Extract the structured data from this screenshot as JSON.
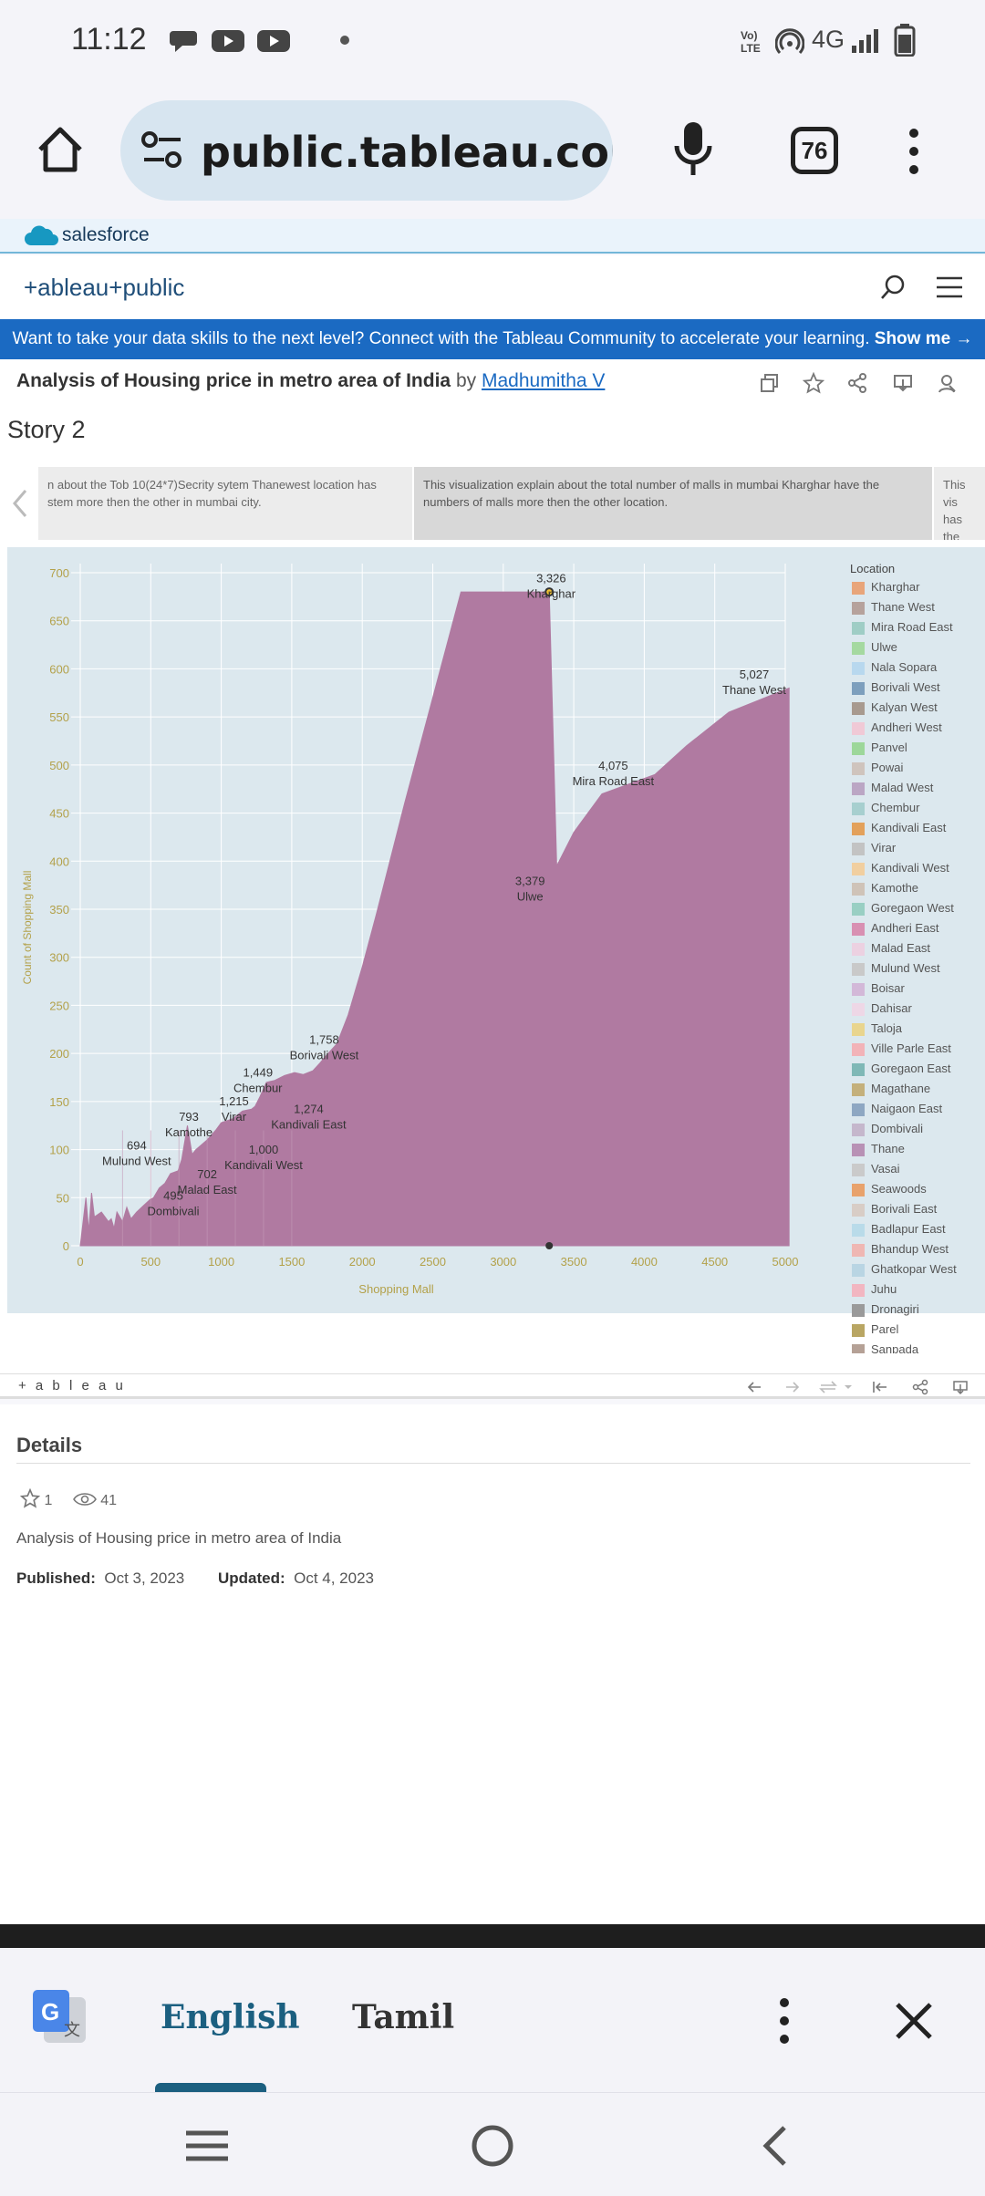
{
  "status_bar": {
    "time": "11:12",
    "network": "4G"
  },
  "browser": {
    "url": "public.tableau.com/app/pı",
    "tab_count": "76"
  },
  "salesforce_label": "salesforce",
  "tableau_logo": "+ableau+public",
  "banner": {
    "text": "Want to take your data skills to the next level? Connect with the Tableau Community to accelerate your learning.",
    "link": "Show me →"
  },
  "viz_header": {
    "title": "Analysis of Housing price in metro area of India",
    "by": "by",
    "author": "Madhumitha V"
  },
  "story": {
    "title": "Story 2",
    "nav_points": [
      "n about the Tob 10(24*7)Secrity sytem Thanewest location has stem more then the other in mumbai city.",
      "This visualization explain about the total number of malls in mumbai Kharghar have the numbers of  malls more then the other location.",
      "This vis has the"
    ]
  },
  "chart_data": {
    "type": "area",
    "xlabel": "Shopping Mall",
    "ylabel": "Count of Shopping Mall",
    "xlim": [
      0,
      5000
    ],
    "ylim": [
      0,
      700
    ],
    "x_ticks": [
      "0",
      "500",
      "1000",
      "1500",
      "2000",
      "2500",
      "3000",
      "3500",
      "4000",
      "4500",
      "5000"
    ],
    "y_ticks": [
      "0",
      "50",
      "100",
      "150",
      "200",
      "250",
      "300",
      "350",
      "400",
      "450",
      "500",
      "550",
      "600",
      "650",
      "700"
    ],
    "color": "#b07aa1",
    "grid": true,
    "x": [
      0,
      40,
      60,
      80,
      100,
      150,
      200,
      220,
      240,
      260,
      300,
      330,
      360,
      400,
      450,
      495,
      520,
      560,
      600,
      640,
      694,
      720,
      760,
      793,
      820,
      860,
      900,
      960,
      1000,
      1080,
      1150,
      1215,
      1240,
      1274,
      1320,
      1380,
      1449,
      1520,
      1580,
      1650,
      1700,
      1758,
      1820,
      1900,
      2000,
      2100,
      2300,
      2500,
      2700,
      2900,
      3100,
      3326,
      3379,
      3500,
      3700,
      4075,
      4300,
      4600,
      5027
    ],
    "y": [
      0,
      50,
      15,
      55,
      30,
      35,
      25,
      28,
      18,
      35,
      25,
      40,
      28,
      35,
      42,
      48,
      50,
      60,
      65,
      75,
      78,
      90,
      125,
      95,
      100,
      105,
      110,
      120,
      128,
      132,
      140,
      142,
      145,
      155,
      170,
      172,
      177,
      180,
      178,
      182,
      190,
      200,
      210,
      240,
      290,
      345,
      460,
      570,
      680,
      680,
      730,
      680,
      395,
      430,
      470,
      490,
      520,
      555,
      580
    ],
    "data_labels": [
      {
        "value": "3,326",
        "name": "Kharghar"
      },
      {
        "value": "5,027",
        "name": "Thane West"
      },
      {
        "value": "4,075",
        "name": "Mira Road East"
      },
      {
        "value": "3,379",
        "name": "Ulwe"
      },
      {
        "value": "1,758",
        "name": "Borivali West"
      },
      {
        "value": "1,449",
        "name": "Chembur"
      },
      {
        "value": "1,215",
        "name": "Virar"
      },
      {
        "value": "1,274",
        "name": "Kandivali East"
      },
      {
        "value": "793",
        "name": "Kamothe"
      },
      {
        "value": "1,000",
        "name": "Kandivali West"
      },
      {
        "value": "694",
        "name": "Mulund West"
      },
      {
        "value": "702",
        "name": "Malad East"
      },
      {
        "value": "495",
        "name": "Dombivali"
      }
    ],
    "legend": {
      "title": "Location",
      "placement": "right",
      "items": [
        {
          "name": "Kharghar",
          "color": "#e8a57a"
        },
        {
          "name": "Thane West",
          "color": "#b6a29c"
        },
        {
          "name": "Mira Road East",
          "color": "#9fcdc5"
        },
        {
          "name": "Ulwe",
          "color": "#a5d9a0"
        },
        {
          "name": "Nala Sopara",
          "color": "#b8d8ee"
        },
        {
          "name": "Borivali West",
          "color": "#7d9fbd"
        },
        {
          "name": "Kalyan West",
          "color": "#a89a8f"
        },
        {
          "name": "Andheri West",
          "color": "#f0c9d6"
        },
        {
          "name": "Panvel",
          "color": "#9dd79a"
        },
        {
          "name": "Powai",
          "color": "#cfc4bd"
        },
        {
          "name": "Malad West",
          "color": "#bba6c4"
        },
        {
          "name": "Chembur",
          "color": "#a7cfcf"
        },
        {
          "name": "Kandivali East",
          "color": "#e3a15b"
        },
        {
          "name": "Virar",
          "color": "#c3c3c3"
        },
        {
          "name": "Kandivali West",
          "color": "#f1cfa0"
        },
        {
          "name": "Kamothe",
          "color": "#cfc3b8"
        },
        {
          "name": "Goregaon West",
          "color": "#99cfc3"
        },
        {
          "name": "Andheri East",
          "color": "#d890b2"
        },
        {
          "name": "Malad East",
          "color": "#ecd1e1"
        },
        {
          "name": "Mulund West",
          "color": "#c9c9c9"
        },
        {
          "name": "Boisar",
          "color": "#d3b8d8"
        },
        {
          "name": "Dahisar",
          "color": "#eed7e6"
        },
        {
          "name": "Taloja",
          "color": "#e9d58e"
        },
        {
          "name": "Ville Parle East",
          "color": "#f2b3b8"
        },
        {
          "name": "Goregaon East",
          "color": "#7fb8b6"
        },
        {
          "name": "Magathane",
          "color": "#c4b07b"
        },
        {
          "name": "Naigaon East",
          "color": "#8ea7c2"
        },
        {
          "name": "Dombivali",
          "color": "#c5b7cc"
        },
        {
          "name": "Thane",
          "color": "#b891b5"
        },
        {
          "name": "Vasai",
          "color": "#cacaca"
        },
        {
          "name": "Seawoods",
          "color": "#e8a26c"
        },
        {
          "name": "Borivali East",
          "color": "#d8cdc6"
        },
        {
          "name": "Badlapur East",
          "color": "#b9dbe9"
        },
        {
          "name": "Bhandup West",
          "color": "#efb7b3"
        },
        {
          "name": "Ghatkopar West",
          "color": "#b9d5e3"
        },
        {
          "name": "Juhu",
          "color": "#f2b6c1"
        },
        {
          "name": "Dronagiri",
          "color": "#9a9a9a"
        },
        {
          "name": "Parel",
          "color": "#b9a663"
        },
        {
          "name": "Sanpada",
          "color": "#b5a196"
        }
      ]
    }
  },
  "tableau_toolbar_logo": "+ a b l e a u",
  "details": {
    "heading": "Details",
    "favorites": "1",
    "views": "41",
    "description": "Analysis of Housing price in metro area of India",
    "published_label": "Published:",
    "published": "Oct 3, 2023",
    "updated_label": "Updated:",
    "updated": "Oct 4, 2023"
  },
  "translate": {
    "source": "English",
    "target": "Tamil",
    "active_color": "#1b5f80"
  }
}
